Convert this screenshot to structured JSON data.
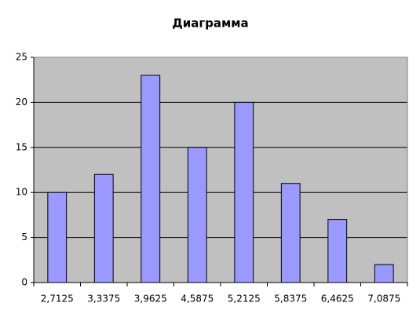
{
  "chart_data": {
    "type": "bar",
    "title": "Диаграмма",
    "categories": [
      "2,7125",
      "3,3375",
      "3,9625",
      "4,5875",
      "5,2125",
      "5,8375",
      "6,4625",
      "7,0875"
    ],
    "values": [
      10,
      12,
      23,
      15,
      20,
      11,
      7,
      2
    ],
    "color": "#9999ff",
    "ylim": [
      0,
      25
    ],
    "yticks": [
      0,
      5,
      10,
      15,
      20,
      25
    ],
    "grid": true
  }
}
